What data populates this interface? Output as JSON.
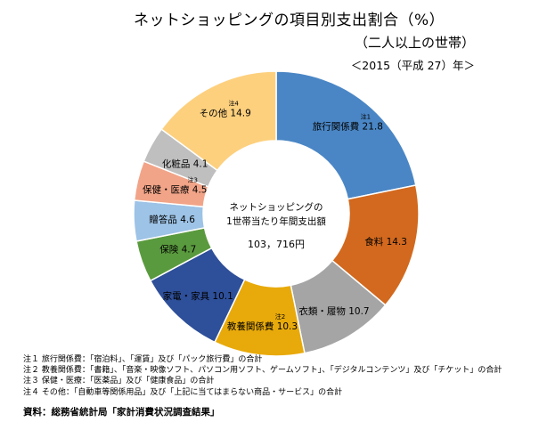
{
  "header": {
    "title": "ネットショッピングの項目別支出割合（%）",
    "subtitle": "（二人以上の世帯）",
    "year": "＜2015（平成 27）年＞"
  },
  "chart_data": {
    "type": "pie",
    "donut": true,
    "title": "ネットショッピングの項目別支出割合（%）",
    "center_text": [
      "ネットショッピングの",
      "1世帯当たり年間支出額",
      "103，716円"
    ],
    "slices": [
      {
        "label": "旅行関係費",
        "value": 21.8,
        "note": "注1",
        "color": "#4a86c5"
      },
      {
        "label": "食料",
        "value": 14.3,
        "note": "",
        "color": "#d2691e"
      },
      {
        "label": "衣類・履物",
        "value": 10.7,
        "note": "",
        "color": "#a5a5a5"
      },
      {
        "label": "教養関係費",
        "value": 10.3,
        "note": "注2",
        "color": "#e8aa0a"
      },
      {
        "label": "家電・家具",
        "value": 10.1,
        "note": "",
        "color": "#2e4f99"
      },
      {
        "label": "保険",
        "value": 4.7,
        "note": "",
        "color": "#5a9a3e"
      },
      {
        "label": "贈答品",
        "value": 4.6,
        "note": "",
        "color": "#9dc3e6"
      },
      {
        "label": "保健・医療",
        "value": 4.5,
        "note": "注3",
        "color": "#f2a488"
      },
      {
        "label": "化粧品",
        "value": 4.1,
        "note": "",
        "color": "#bfbfbf"
      },
      {
        "label": "その他",
        "value": 14.9,
        "note": "注4",
        "color": "#fdd07e"
      }
    ]
  },
  "notes": [
    "注１ 旅行関係費：「宿泊料」、「運賃」及び「パック旅行費」の合計",
    "注２ 教養関係費：「書籍」、「音楽・映像ソフト、パソコン用ソフト、ゲームソフト」、「デジタルコンテンツ」及び「チケット」の合計",
    "注３ 保健・医療：「医薬品」及び「健康食品」の合計",
    "注４ その他：「自動車等関係用品」及び「上記に当てはまらない商品・サービス」の合計"
  ],
  "source": "資料：総務省統計局「家計消費状況調査結果」"
}
